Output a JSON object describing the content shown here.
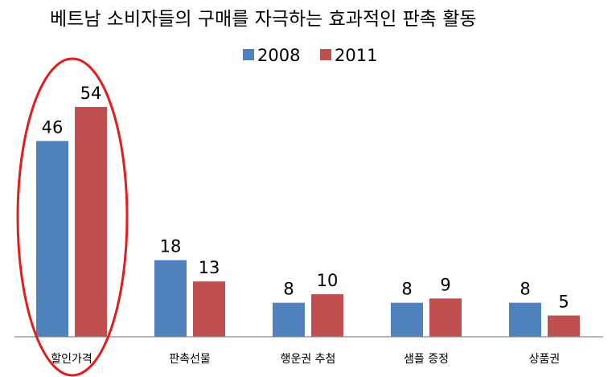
{
  "chart_data": {
    "type": "bar",
    "title": "베트남 소비자들의 구매를 자극하는 효과적인 판촉 활동",
    "categories": [
      "할인가격",
      "판촉선물",
      "행운권 추첨",
      "샘플 증정",
      "상품권"
    ],
    "series": [
      {
        "name": "2008",
        "color": "#4f81bd",
        "values": [
          46,
          18,
          8,
          8,
          8
        ]
      },
      {
        "name": "2011",
        "color": "#c0504d",
        "values": [
          54,
          13,
          10,
          9,
          5
        ]
      }
    ],
    "ylim": [
      0,
      60
    ],
    "grid": false,
    "legend": "top-center",
    "annotation": {
      "shape": "ellipse",
      "color": "#e31d1d",
      "highlights": "할인가격"
    }
  }
}
